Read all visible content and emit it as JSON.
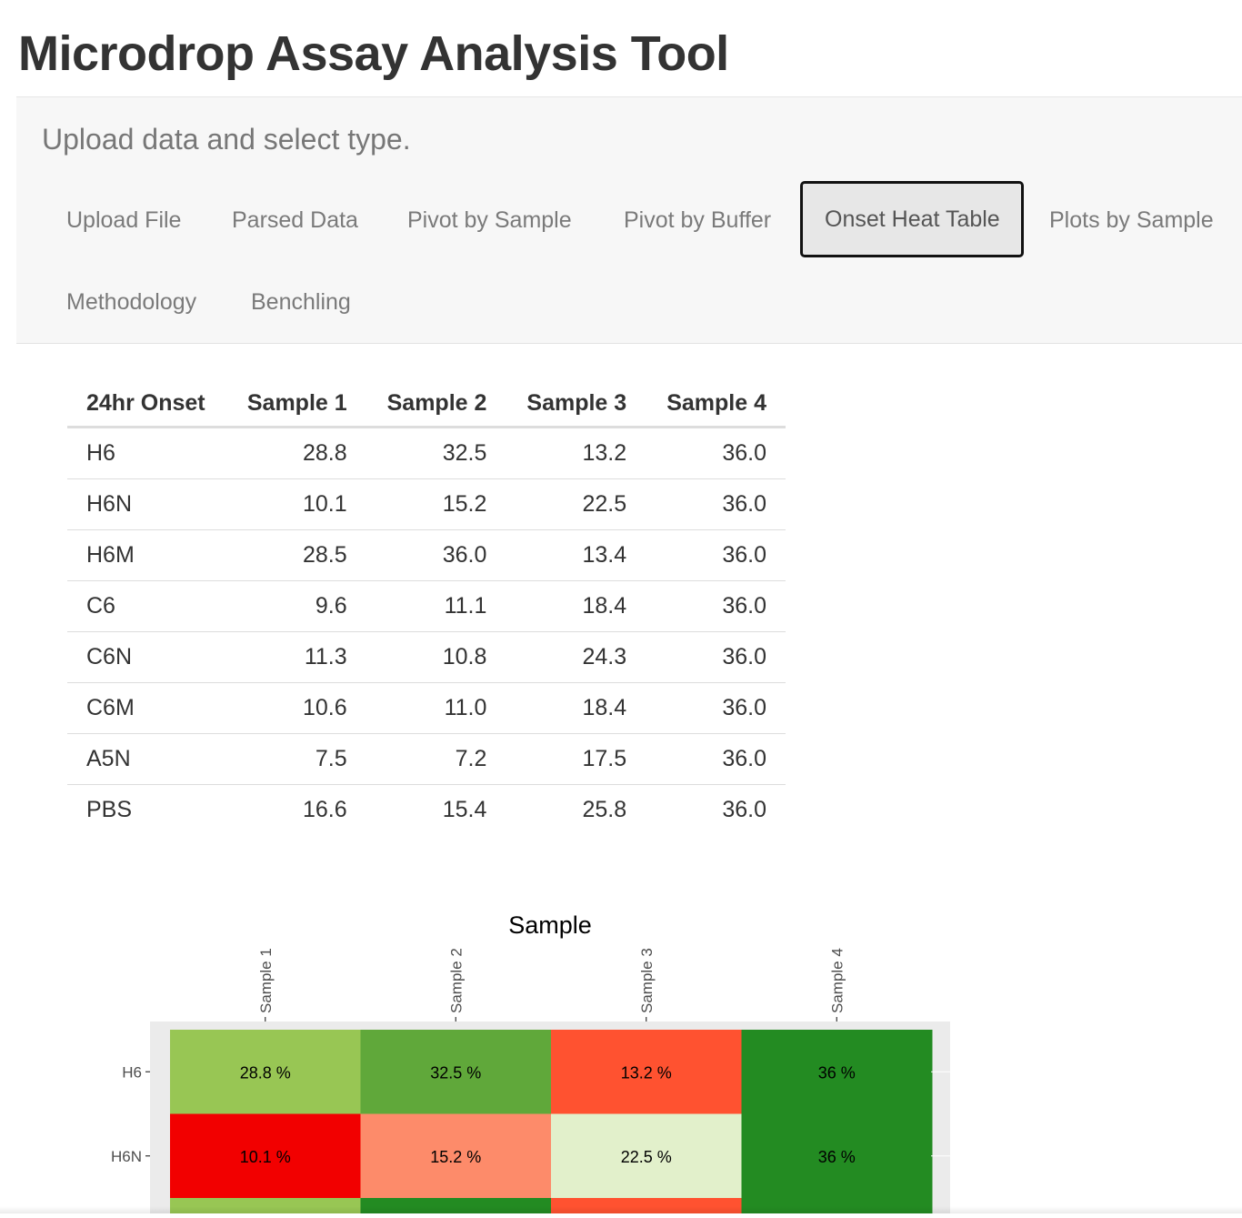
{
  "app": {
    "title": "Microdrop Assay Analysis Tool"
  },
  "sidebar_panel": {
    "instructions": "Upload data and select type."
  },
  "tabs": [
    {
      "label": "Upload File",
      "active": false
    },
    {
      "label": "Parsed Data",
      "active": false
    },
    {
      "label": "Pivot by Sample",
      "active": false
    },
    {
      "label": "Pivot by Buffer",
      "active": false
    },
    {
      "label": "Onset Heat Table",
      "active": true
    },
    {
      "label": "Plots by Sample",
      "active": false
    },
    {
      "label": "Methodology",
      "active": false
    },
    {
      "label": "Benchling",
      "active": false
    }
  ],
  "table": {
    "headers": [
      "24hr Onset",
      "Sample 1",
      "Sample 2",
      "Sample 3",
      "Sample 4"
    ],
    "rows": [
      [
        "H6",
        "28.8",
        "32.5",
        "13.2",
        "36.0"
      ],
      [
        "H6N",
        "10.1",
        "15.2",
        "22.5",
        "36.0"
      ],
      [
        "H6M",
        "28.5",
        "36.0",
        "13.4",
        "36.0"
      ],
      [
        "C6",
        "9.6",
        "11.1",
        "18.4",
        "36.0"
      ],
      [
        "C6N",
        "11.3",
        "10.8",
        "24.3",
        "36.0"
      ],
      [
        "C6M",
        "10.6",
        "11.0",
        "18.4",
        "36.0"
      ],
      [
        "A5N",
        "7.5",
        "7.2",
        "17.5",
        "36.0"
      ],
      [
        "PBS",
        "16.6",
        "15.4",
        "25.8",
        "36.0"
      ]
    ]
  },
  "chart_data": {
    "type": "heatmap",
    "title": "Sample",
    "x_categories": [
      "Sample 1",
      "Sample 2",
      "Sample 3",
      "Sample 4"
    ],
    "y_categories": [
      "H6",
      "H6N"
    ],
    "values": [
      [
        28.8,
        32.5,
        13.2,
        36
      ],
      [
        10.1,
        15.2,
        22.5,
        36
      ]
    ],
    "labels": [
      [
        "28.8 %",
        "32.5 %",
        "13.2 %",
        "36 %"
      ],
      [
        "10.1 %",
        "15.2 %",
        "22.5 %",
        "36 %"
      ]
    ],
    "cell_colors": [
      [
        "#98c654",
        "#60a83a",
        "#ff5230",
        "#238b22"
      ],
      [
        "#f20000",
        "#fd8b6a",
        "#e2f0cb",
        "#238b22"
      ]
    ],
    "partial_row_colors": [
      "#98c654",
      "#238b22",
      "#ff5230",
      "#238b22"
    ],
    "panel_background": "#ebebeb",
    "x_axis_position": "top"
  }
}
